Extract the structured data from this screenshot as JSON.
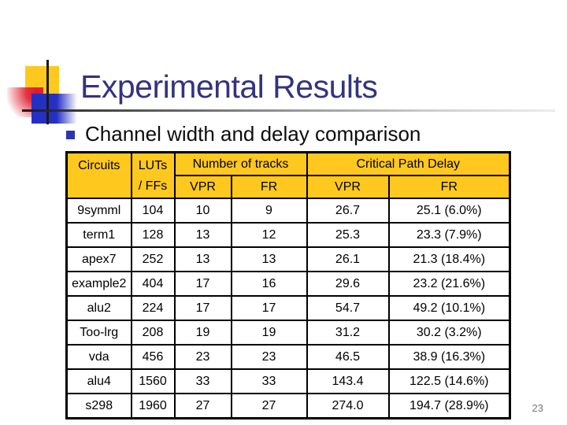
{
  "slide": {
    "title": "Experimental Results",
    "bullet_text": "Channel width and delay comparison",
    "page_number": "23"
  },
  "colors": {
    "table_header_bg": "#FFC81E",
    "title_text": "#333380",
    "decoration_yellow": "#FFC81E",
    "decoration_red": "#DE1826",
    "decoration_blue": "#2430C4",
    "bullet_blue": "#2B35AF",
    "border_black": "#000000"
  },
  "table": {
    "header": {
      "circuits": "Circuits",
      "luts_line1": "LUTs",
      "luts_line2": "/ FFs",
      "number_of_tracks": "Number of tracks",
      "critical_path_delay": "Critical Path Delay",
      "sub": [
        "VPR",
        "FR",
        "VPR",
        "FR"
      ]
    },
    "rows": [
      [
        "9symml",
        "104",
        "10",
        "9",
        "26.7",
        "25.1 (6.0%)"
      ],
      [
        "term1",
        "128",
        "13",
        "12",
        "25.3",
        "23.3 (7.9%)"
      ],
      [
        "apex7",
        "252",
        "13",
        "13",
        "26.1",
        "21.3 (18.4%)"
      ],
      [
        "example2",
        "404",
        "17",
        "16",
        "29.6",
        "23.2 (21.6%)"
      ],
      [
        "alu2",
        "224",
        "17",
        "17",
        "54.7",
        "49.2 (10.1%)"
      ],
      [
        "Too-lrg",
        "208",
        "19",
        "19",
        "31.2",
        "30.2 (3.2%)"
      ],
      [
        "vda",
        "456",
        "23",
        "23",
        "46.5",
        "38.9 (16.3%)"
      ],
      [
        "alu4",
        "1560",
        "33",
        "33",
        "143.4",
        "122.5 (14.6%)"
      ],
      [
        "s298",
        "1960",
        "27",
        "27",
        "274.0",
        "194.7 (28.9%)"
      ]
    ]
  }
}
